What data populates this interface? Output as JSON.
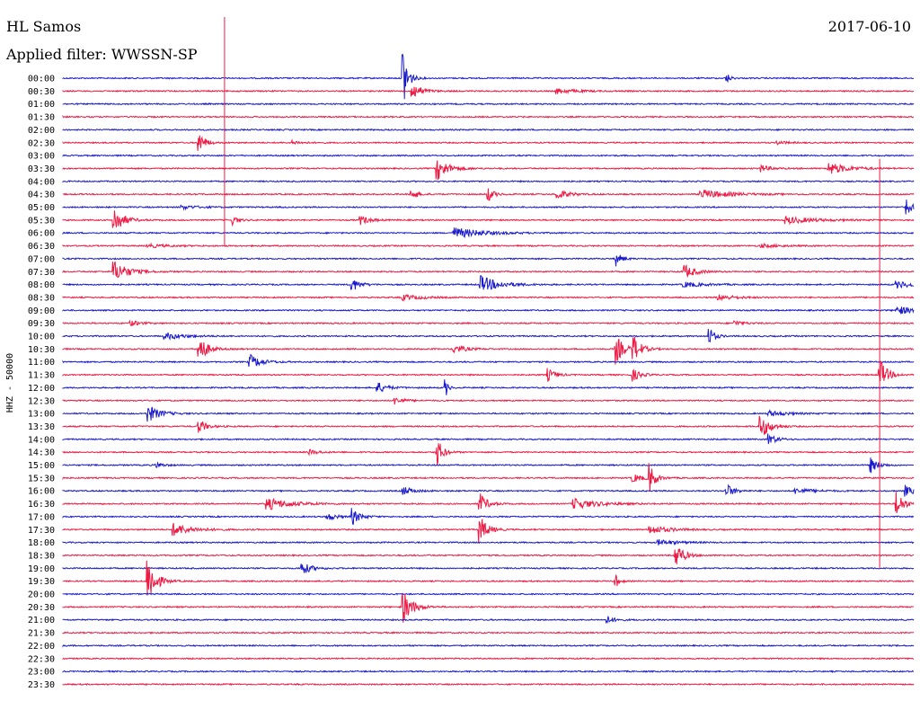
{
  "header": {
    "station": "HL Samos",
    "date": "2017-06-10",
    "filter": "Applied filter: WWSSN-SP"
  },
  "chart_data": {
    "type": "line",
    "ylabel": "HHZ - 50000",
    "tick_labels": [
      "00:00",
      "00:30",
      "01:00",
      "01:30",
      "02:00",
      "02:30",
      "03:00",
      "03:30",
      "04:00",
      "04:30",
      "05:00",
      "05:30",
      "06:00",
      "06:30",
      "07:00",
      "07:30",
      "08:00",
      "08:30",
      "09:00",
      "09:30",
      "10:00",
      "10:30",
      "11:00",
      "11:30",
      "12:00",
      "12:30",
      "13:00",
      "13:30",
      "14:00",
      "14:30",
      "15:00",
      "15:30",
      "16:00",
      "16:30",
      "17:00",
      "17:30",
      "18:00",
      "18:30",
      "19:00",
      "19:30",
      "20:00",
      "20:30",
      "21:00",
      "21:30",
      "22:00",
      "22:30",
      "23:00",
      "23:30"
    ],
    "colors": [
      "#1a1acc",
      "#ee1a44"
    ],
    "events": [
      {
        "row": 0,
        "x": 0.4,
        "amp": 38,
        "w": 0.005,
        "up": true
      },
      {
        "row": 0,
        "x": 0.78,
        "amp": 6,
        "w": 0.004
      },
      {
        "row": 1,
        "x": 0.41,
        "amp": 10,
        "w": 0.01
      },
      {
        "row": 1,
        "x": 0.58,
        "amp": 3,
        "w": 0.02
      },
      {
        "row": 3,
        "x": 0.16,
        "amp": 0,
        "w": 0.01
      },
      {
        "row": 5,
        "x": 0.16,
        "amp": 14,
        "w": 0.006
      },
      {
        "row": 5,
        "x": 0.27,
        "amp": 2,
        "w": 0.01
      },
      {
        "row": 5,
        "x": 0.84,
        "amp": 2,
        "w": 0.01
      },
      {
        "row": 7,
        "x": 0.44,
        "amp": 13,
        "w": 0.012
      },
      {
        "row": 7,
        "x": 0.82,
        "amp": 4,
        "w": 0.01
      },
      {
        "row": 7,
        "x": 0.9,
        "amp": 7,
        "w": 0.02
      },
      {
        "row": 9,
        "x": 0.41,
        "amp": 7,
        "w": 0.006
      },
      {
        "row": 9,
        "x": 0.5,
        "amp": 8,
        "w": 0.006
      },
      {
        "row": 9,
        "x": 0.58,
        "amp": 6,
        "w": 0.012
      },
      {
        "row": 9,
        "x": 0.75,
        "amp": 5,
        "w": 0.03
      },
      {
        "row": 10,
        "x": 0.14,
        "amp": 2,
        "w": 0.02
      },
      {
        "row": 10,
        "x": 0.99,
        "amp": 12,
        "w": 0.006
      },
      {
        "row": 11,
        "x": 0.06,
        "amp": 16,
        "w": 0.01
      },
      {
        "row": 11,
        "x": 0.2,
        "amp": 5,
        "w": 0.006
      },
      {
        "row": 11,
        "x": 0.35,
        "amp": 5,
        "w": 0.01
      },
      {
        "row": 11,
        "x": 0.85,
        "amp": 4,
        "w": 0.03
      },
      {
        "row": 12,
        "x": 0.46,
        "amp": 6,
        "w": 0.03
      },
      {
        "row": 13,
        "x": 0.1,
        "amp": 2,
        "w": 0.02
      },
      {
        "row": 13,
        "x": 0.82,
        "amp": 2,
        "w": 0.02
      },
      {
        "row": 14,
        "x": 0.65,
        "amp": 8,
        "w": 0.006
      },
      {
        "row": 15,
        "x": 0.06,
        "amp": 12,
        "w": 0.015
      },
      {
        "row": 15,
        "x": 0.73,
        "amp": 8,
        "w": 0.012
      },
      {
        "row": 16,
        "x": 0.34,
        "amp": 8,
        "w": 0.008
      },
      {
        "row": 16,
        "x": 0.49,
        "amp": 10,
        "w": 0.02
      },
      {
        "row": 16,
        "x": 0.73,
        "amp": 3,
        "w": 0.02
      },
      {
        "row": 16,
        "x": 0.98,
        "amp": 4,
        "w": 0.02
      },
      {
        "row": 17,
        "x": 0.4,
        "amp": 3,
        "w": 0.02
      },
      {
        "row": 17,
        "x": 0.77,
        "amp": 3,
        "w": 0.02
      },
      {
        "row": 18,
        "x": 0.98,
        "amp": 5,
        "w": 0.02
      },
      {
        "row": 19,
        "x": 0.08,
        "amp": 3,
        "w": 0.01
      },
      {
        "row": 19,
        "x": 0.79,
        "amp": 3,
        "w": 0.01
      },
      {
        "row": 20,
        "x": 0.12,
        "amp": 4,
        "w": 0.02
      },
      {
        "row": 20,
        "x": 0.76,
        "amp": 10,
        "w": 0.006
      },
      {
        "row": 21,
        "x": 0.16,
        "amp": 18,
        "w": 0.008
      },
      {
        "row": 21,
        "x": 0.46,
        "amp": 5,
        "w": 0.012
      },
      {
        "row": 21,
        "x": 0.65,
        "amp": 17,
        "w": 0.008
      },
      {
        "row": 21,
        "x": 0.67,
        "amp": 16,
        "w": 0.008
      },
      {
        "row": 22,
        "x": 0.22,
        "amp": 8,
        "w": 0.012
      },
      {
        "row": 23,
        "x": 0.57,
        "amp": 7,
        "w": 0.008
      },
      {
        "row": 23,
        "x": 0.67,
        "amp": 7,
        "w": 0.008
      },
      {
        "row": 23,
        "x": 0.96,
        "amp": 18,
        "w": 0.008
      },
      {
        "row": 24,
        "x": 0.37,
        "amp": 6,
        "w": 0.01
      },
      {
        "row": 24,
        "x": 0.45,
        "amp": 10,
        "w": 0.003
      },
      {
        "row": 25,
        "x": 0.39,
        "amp": 4,
        "w": 0.01
      },
      {
        "row": 26,
        "x": 0.1,
        "amp": 10,
        "w": 0.012
      },
      {
        "row": 26,
        "x": 0.83,
        "amp": 3,
        "w": 0.02
      },
      {
        "row": 27,
        "x": 0.16,
        "amp": 8,
        "w": 0.008
      },
      {
        "row": 27,
        "x": 0.82,
        "amp": 14,
        "w": 0.01
      },
      {
        "row": 28,
        "x": 0.83,
        "amp": 6,
        "w": 0.008
      },
      {
        "row": 29,
        "x": 0.44,
        "amp": 16,
        "w": 0.006
      },
      {
        "row": 29,
        "x": 0.29,
        "amp": 3,
        "w": 0.01
      },
      {
        "row": 30,
        "x": 0.11,
        "amp": 3,
        "w": 0.008
      },
      {
        "row": 30,
        "x": 0.95,
        "amp": 8,
        "w": 0.008
      },
      {
        "row": 31,
        "x": 0.67,
        "amp": 5,
        "w": 0.01
      },
      {
        "row": 31,
        "x": 0.69,
        "amp": 16,
        "w": 0.006
      },
      {
        "row": 32,
        "x": 0.4,
        "amp": 5,
        "w": 0.01
      },
      {
        "row": 32,
        "x": 0.78,
        "amp": 8,
        "w": 0.008
      },
      {
        "row": 32,
        "x": 0.86,
        "amp": 3,
        "w": 0.02
      },
      {
        "row": 32,
        "x": 0.99,
        "amp": 6,
        "w": 0.01
      },
      {
        "row": 33,
        "x": 0.24,
        "amp": 7,
        "w": 0.025
      },
      {
        "row": 33,
        "x": 0.49,
        "amp": 12,
        "w": 0.008
      },
      {
        "row": 33,
        "x": 0.6,
        "amp": 6,
        "w": 0.025
      },
      {
        "row": 33,
        "x": 0.98,
        "amp": 14,
        "w": 0.008
      },
      {
        "row": 34,
        "x": 0.31,
        "amp": 4,
        "w": 0.012
      },
      {
        "row": 34,
        "x": 0.34,
        "amp": 9,
        "w": 0.008
      },
      {
        "row": 35,
        "x": 0.13,
        "amp": 7,
        "w": 0.02
      },
      {
        "row": 35,
        "x": 0.49,
        "amp": 16,
        "w": 0.008
      },
      {
        "row": 35,
        "x": 0.69,
        "amp": 5,
        "w": 0.02
      },
      {
        "row": 36,
        "x": 0.7,
        "amp": 3,
        "w": 0.02
      },
      {
        "row": 37,
        "x": 0.72,
        "amp": 16,
        "w": 0.008
      },
      {
        "row": 38,
        "x": 0.28,
        "amp": 8,
        "w": 0.01
      },
      {
        "row": 39,
        "x": 0.1,
        "amp": 30,
        "w": 0.008
      },
      {
        "row": 39,
        "x": 0.65,
        "amp": 7,
        "w": 0.004
      },
      {
        "row": 41,
        "x": 0.4,
        "amp": 18,
        "w": 0.01
      },
      {
        "row": 42,
        "x": 0.64,
        "amp": 4,
        "w": 0.008
      }
    ],
    "markers": [
      {
        "row_start": 0,
        "row_end": 13,
        "x": 0.19
      },
      {
        "row_start": 11,
        "row_end": 38,
        "x": 0.96
      }
    ]
  }
}
